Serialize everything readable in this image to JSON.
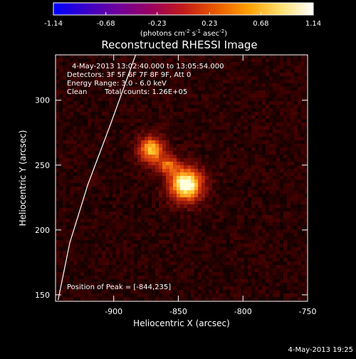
{
  "colorbar": {
    "tick_labels": [
      "-1.14",
      "-0.68",
      "-0.23",
      "0.23",
      "0.68",
      "1.14"
    ],
    "tick_values": [
      -1.14,
      -0.68,
      -0.23,
      0.23,
      0.68,
      1.14
    ],
    "range": [
      -1.14,
      1.14
    ],
    "unit_label_base": "(photons cm",
    "unit_exp1": "-2",
    "unit_mid": " s",
    "unit_exp2": "-1",
    "unit_mid2": " asec",
    "unit_exp3": "-2",
    "unit_close": ")",
    "colors": [
      "#0000ff",
      "#3a00c8",
      "#70009a",
      "#9a0060",
      "#c21a1a",
      "#e85a00",
      "#ffa000",
      "#ffe070",
      "#ffffff"
    ]
  },
  "annotations": {
    "time_range": "4-May-2013 13:02:40.000 to 13:05:54.000",
    "detectors": "Detectors: 3F 5F 6F 7F 8F 9F, Att 0",
    "energy_range": "Energy Range: 3.0 - 6.0 keV",
    "algorithm": "Clean",
    "total_counts": "Total counts: 1.26E+05",
    "peak_position": "Position of Peak = [-844,235]"
  },
  "timestamp": "4-May-2013 19:25",
  "chart_data": {
    "type": "heatmap",
    "title": "Reconstructed RHESSI Image",
    "xlabel": "Heliocentric X (arcsec)",
    "ylabel": "Heliocentric Y (arcsec)",
    "xlim": [
      -945,
      -750
    ],
    "ylim": [
      145,
      335
    ],
    "x_ticks": [
      -900,
      -850,
      -800,
      -750
    ],
    "x_tick_labels": [
      "-900",
      "-850",
      "-800",
      "-750"
    ],
    "y_ticks": [
      150,
      200,
      250,
      300
    ],
    "y_tick_labels": [
      "150",
      "200",
      "250",
      "300"
    ],
    "sources": [
      {
        "x": -844,
        "y": 235,
        "sigma_x": 9,
        "sigma_y": 9,
        "intensity": 1.14
      },
      {
        "x": -871,
        "y": 262,
        "sigma_x": 7,
        "sigma_y": 7,
        "intensity": 0.85
      },
      {
        "x": -858,
        "y": 250,
        "sigma_x": 6,
        "sigma_y": 5,
        "intensity": 0.55
      }
    ],
    "background_level": 0.12,
    "peak": [
      -844,
      235
    ],
    "limb": [
      [
        -943,
        146
      ],
      [
        -934,
        190
      ],
      [
        -920,
        235
      ],
      [
        -903,
        280
      ],
      [
        -883,
        335
      ]
    ]
  }
}
